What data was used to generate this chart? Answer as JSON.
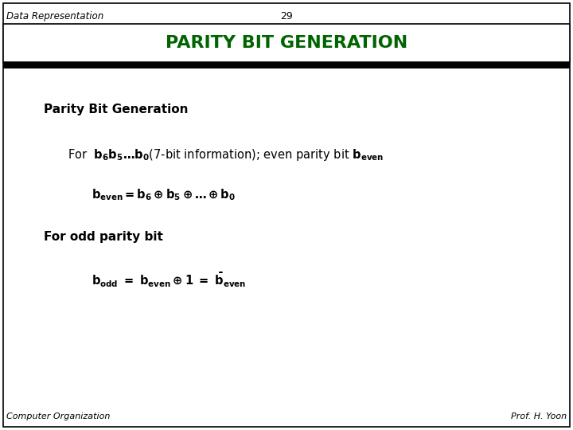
{
  "page_label": "Data Representation",
  "page_number": "29",
  "title": "PARITY BIT GENERATION",
  "title_color": "#006400",
  "title_bg": "#ffffff",
  "footer_left": "Computer Organization",
  "footer_right": "Prof. H. Yoon",
  "bg_color": "#ffffff",
  "border_color": "#000000"
}
